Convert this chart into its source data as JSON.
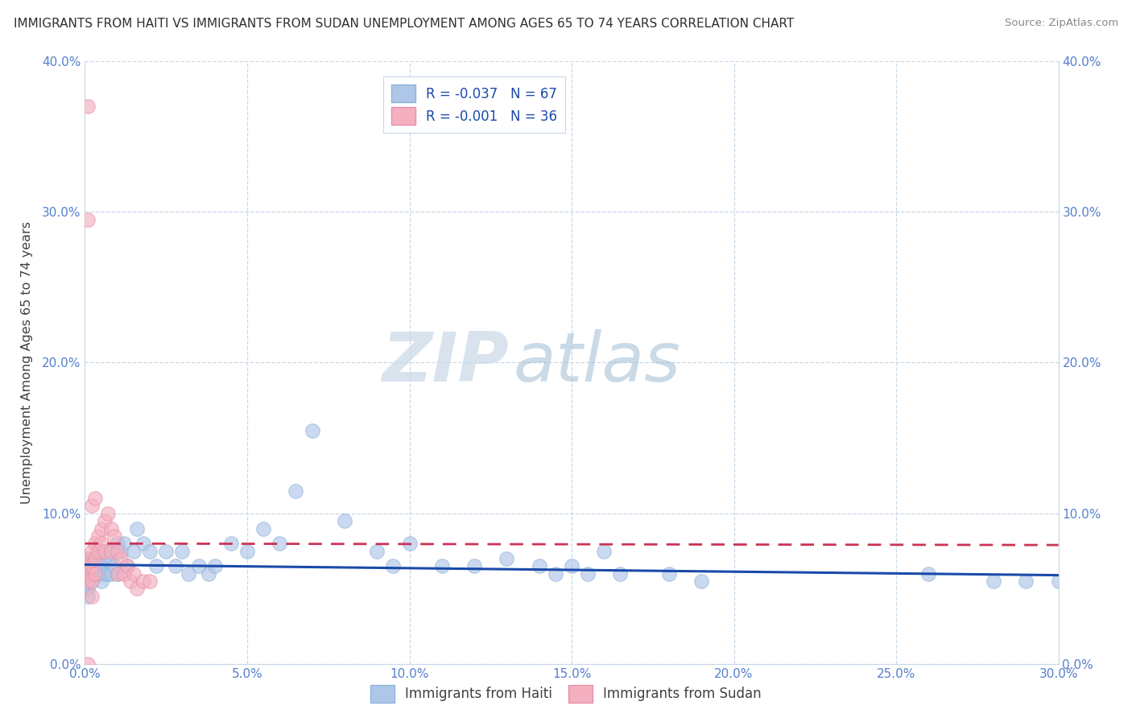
{
  "title": "IMMIGRANTS FROM HAITI VS IMMIGRANTS FROM SUDAN UNEMPLOYMENT AMONG AGES 65 TO 74 YEARS CORRELATION CHART",
  "source": "Source: ZipAtlas.com",
  "ylabel": "Unemployment Among Ages 65 to 74 years",
  "xlim": [
    0.0,
    0.3
  ],
  "ylim": [
    0.0,
    0.4
  ],
  "xticks": [
    0.0,
    0.05,
    0.1,
    0.15,
    0.2,
    0.25,
    0.3
  ],
  "xticklabels": [
    "0.0%",
    "5.0%",
    "10.0%",
    "15.0%",
    "20.0%",
    "25.0%",
    "30.0%"
  ],
  "yticks": [
    0.0,
    0.1,
    0.2,
    0.3,
    0.4
  ],
  "yticklabels": [
    "0.0%",
    "10.0%",
    "20.0%",
    "30.0%",
    "40.0%"
  ],
  "haiti_color": "#aec6e8",
  "sudan_color": "#f4b0c0",
  "haiti_line_color": "#1a4aaa",
  "sudan_line_color": "#cc3355",
  "legend_haiti_label": "Immigrants from Haiti",
  "legend_sudan_label": "Immigrants from Sudan",
  "haiti_R": "-0.037",
  "haiti_N": "67",
  "sudan_R": "-0.001",
  "sudan_N": "36",
  "watermark_zip": "ZIP",
  "watermark_atlas": "atlas",
  "haiti_x": [
    0.001,
    0.001,
    0.001,
    0.001,
    0.001,
    0.002,
    0.002,
    0.002,
    0.002,
    0.003,
    0.003,
    0.003,
    0.004,
    0.004,
    0.004,
    0.005,
    0.005,
    0.005,
    0.006,
    0.006,
    0.007,
    0.007,
    0.008,
    0.008,
    0.009,
    0.01,
    0.01,
    0.011,
    0.012,
    0.013,
    0.015,
    0.016,
    0.018,
    0.02,
    0.022,
    0.025,
    0.028,
    0.03,
    0.032,
    0.035,
    0.038,
    0.04,
    0.045,
    0.05,
    0.055,
    0.06,
    0.065,
    0.07,
    0.08,
    0.09,
    0.095,
    0.1,
    0.11,
    0.12,
    0.13,
    0.14,
    0.145,
    0.15,
    0.155,
    0.16,
    0.165,
    0.18,
    0.19,
    0.26,
    0.28,
    0.29,
    0.3
  ],
  "haiti_y": [
    0.065,
    0.06,
    0.055,
    0.05,
    0.045,
    0.07,
    0.065,
    0.06,
    0.055,
    0.07,
    0.065,
    0.06,
    0.07,
    0.065,
    0.06,
    0.075,
    0.065,
    0.055,
    0.07,
    0.06,
    0.075,
    0.06,
    0.07,
    0.06,
    0.065,
    0.08,
    0.06,
    0.075,
    0.08,
    0.065,
    0.075,
    0.09,
    0.08,
    0.075,
    0.065,
    0.075,
    0.065,
    0.075,
    0.06,
    0.065,
    0.06,
    0.065,
    0.08,
    0.075,
    0.09,
    0.08,
    0.115,
    0.155,
    0.095,
    0.075,
    0.065,
    0.08,
    0.065,
    0.065,
    0.07,
    0.065,
    0.06,
    0.065,
    0.06,
    0.075,
    0.06,
    0.06,
    0.055,
    0.06,
    0.055,
    0.055,
    0.055
  ],
  "sudan_x": [
    0.001,
    0.001,
    0.001,
    0.001,
    0.001,
    0.002,
    0.002,
    0.002,
    0.002,
    0.003,
    0.003,
    0.003,
    0.004,
    0.004,
    0.005,
    0.005,
    0.006,
    0.006,
    0.007,
    0.008,
    0.008,
    0.009,
    0.01,
    0.01,
    0.011,
    0.012,
    0.013,
    0.014,
    0.015,
    0.016,
    0.018,
    0.02,
    0.001,
    0.001,
    0.002,
    0.003
  ],
  "sudan_y": [
    0.07,
    0.065,
    0.06,
    0.055,
    0.0,
    0.075,
    0.065,
    0.055,
    0.045,
    0.08,
    0.07,
    0.06,
    0.085,
    0.075,
    0.09,
    0.08,
    0.095,
    0.075,
    0.1,
    0.09,
    0.075,
    0.085,
    0.075,
    0.06,
    0.07,
    0.06,
    0.065,
    0.055,
    0.06,
    0.05,
    0.055,
    0.055,
    0.37,
    0.295,
    0.105,
    0.11
  ],
  "haiti_trend_x": [
    0.0,
    0.3
  ],
  "haiti_trend_y": [
    0.066,
    0.059
  ],
  "sudan_trend_x": [
    0.0,
    0.3
  ],
  "sudan_trend_y": [
    0.08,
    0.079
  ]
}
